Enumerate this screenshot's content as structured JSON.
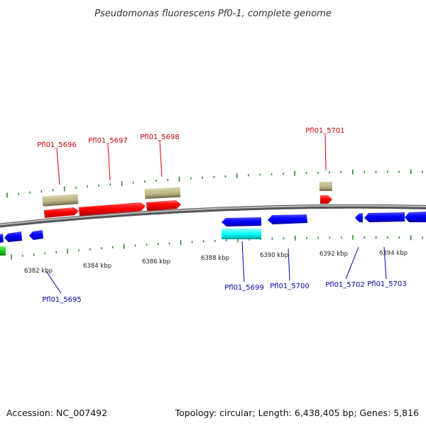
{
  "title": "Pseudomonas fluorescens Pf0-1, complete genome",
  "accession": "Accession: NC_007492",
  "summary": "Topology: circular; Length: 6,438,405 bp; Genes: 5,816",
  "colors": {
    "forward_label": "#cc0000",
    "reverse_label": "#0000aa",
    "red_gene": "#ff0000",
    "blue_gene": "#0000ff",
    "khaki_gene": "#bdb585",
    "cyan_gene": "#00ffff",
    "green_gene": "#22cc22",
    "tick": "#2e8b2e",
    "backbone": "#888888"
  },
  "scale": {
    "unit": "kbp",
    "ticks": [
      {
        "label": "6382 kbp",
        "value": 6382
      },
      {
        "label": "6384 kbp",
        "value": 6384
      },
      {
        "label": "6386 kbp",
        "value": 6386
      },
      {
        "label": "6388 kbp",
        "value": 6388
      },
      {
        "label": "6390 kbp",
        "value": 6390
      },
      {
        "label": "6392 kbp",
        "value": 6392
      },
      {
        "label": "6394 kbp",
        "value": 6394
      }
    ]
  },
  "labels": {
    "forward": [
      "Pfl01_5696",
      "Pfl01_5697",
      "Pfl01_5698",
      "Pfl01_5701"
    ],
    "reverse": [
      "Pfl01_5695",
      "Pfl01_5699",
      "Pfl01_5700",
      "Pfl01_5702",
      "Pfl01_5703"
    ]
  }
}
